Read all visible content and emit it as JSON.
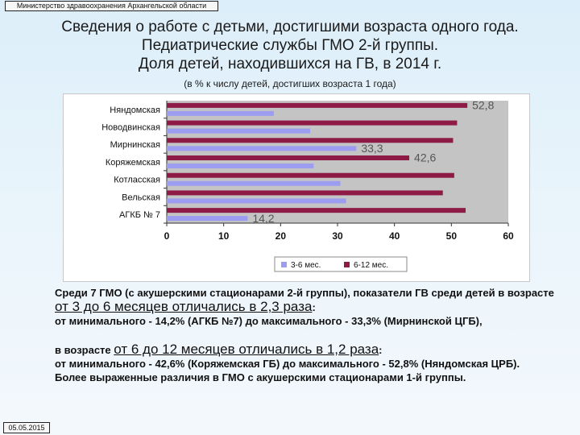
{
  "header": {
    "org": "Министерство здравоохранения Архангельской области"
  },
  "title": {
    "line1": "Сведения о работе с детьми, достигшими возраста одного года.",
    "line2": "Педиатрические службы ГМО 2-й группы.",
    "line3": "Доля детей, находившихся на ГВ, в 2014 г."
  },
  "subtitle": "(в % к числу детей, достигших возраста 1 года)",
  "colors": {
    "series1": "#9c9cf0",
    "series2": "#8e1b46",
    "plot_bg": "#c4c4c4",
    "label_value": "#555555"
  },
  "chart_data": {
    "type": "bar",
    "orientation": "horizontal",
    "categories": [
      "Няндомская",
      "Новодвинская",
      "Мирнинская",
      "Коряжемская",
      "Котласская",
      "Вельская",
      "АГКБ № 7"
    ],
    "series": [
      {
        "name": "3-6 мес.",
        "values": [
          18.8,
          25.2,
          33.3,
          25.8,
          30.5,
          31.5,
          14.2
        ]
      },
      {
        "name": "6-12 мес.",
        "values": [
          52.8,
          51.0,
          50.3,
          42.6,
          50.5,
          48.5,
          52.5
        ]
      }
    ],
    "data_labels": [
      {
        "series": 1,
        "index": 0,
        "text": "52,8"
      },
      {
        "series": 0,
        "index": 2,
        "text": "33,3"
      },
      {
        "series": 1,
        "index": 3,
        "text": "42,6"
      },
      {
        "series": 0,
        "index": 6,
        "text": "14,2"
      }
    ],
    "xlim": [
      0,
      60
    ],
    "xticks": [
      0,
      10,
      20,
      30,
      40,
      50,
      60
    ],
    "grid": false,
    "legend": "bottom"
  },
  "body": {
    "p1_start": "Среди 7 ГМО (с акушерскими стационарами 2-й группы), показатели ГВ среди детей в возрасте ",
    "p1_big": "от 3 до 6 месяцев отличались в 2,3 раза",
    "p1_end": ":",
    "p2": "от минимального - 14,2% (АГКБ №7) до максимального - 33,3% (Мирнинской ЦГБ),",
    "p3_start": "в возрасте ",
    "p3_big": "от 6 до 12 месяцев отличались в 1,2 раза",
    "p3_end": ":",
    "p4": "от минимального - 42,6% (Коряжемская ГБ) до максимального - 52,8% (Няндомская ЦРБ).",
    "p5": "Более выраженные различия в ГМО с акушерскими стационарами 1-й группы."
  },
  "footer": {
    "date": "05.05.2015"
  }
}
